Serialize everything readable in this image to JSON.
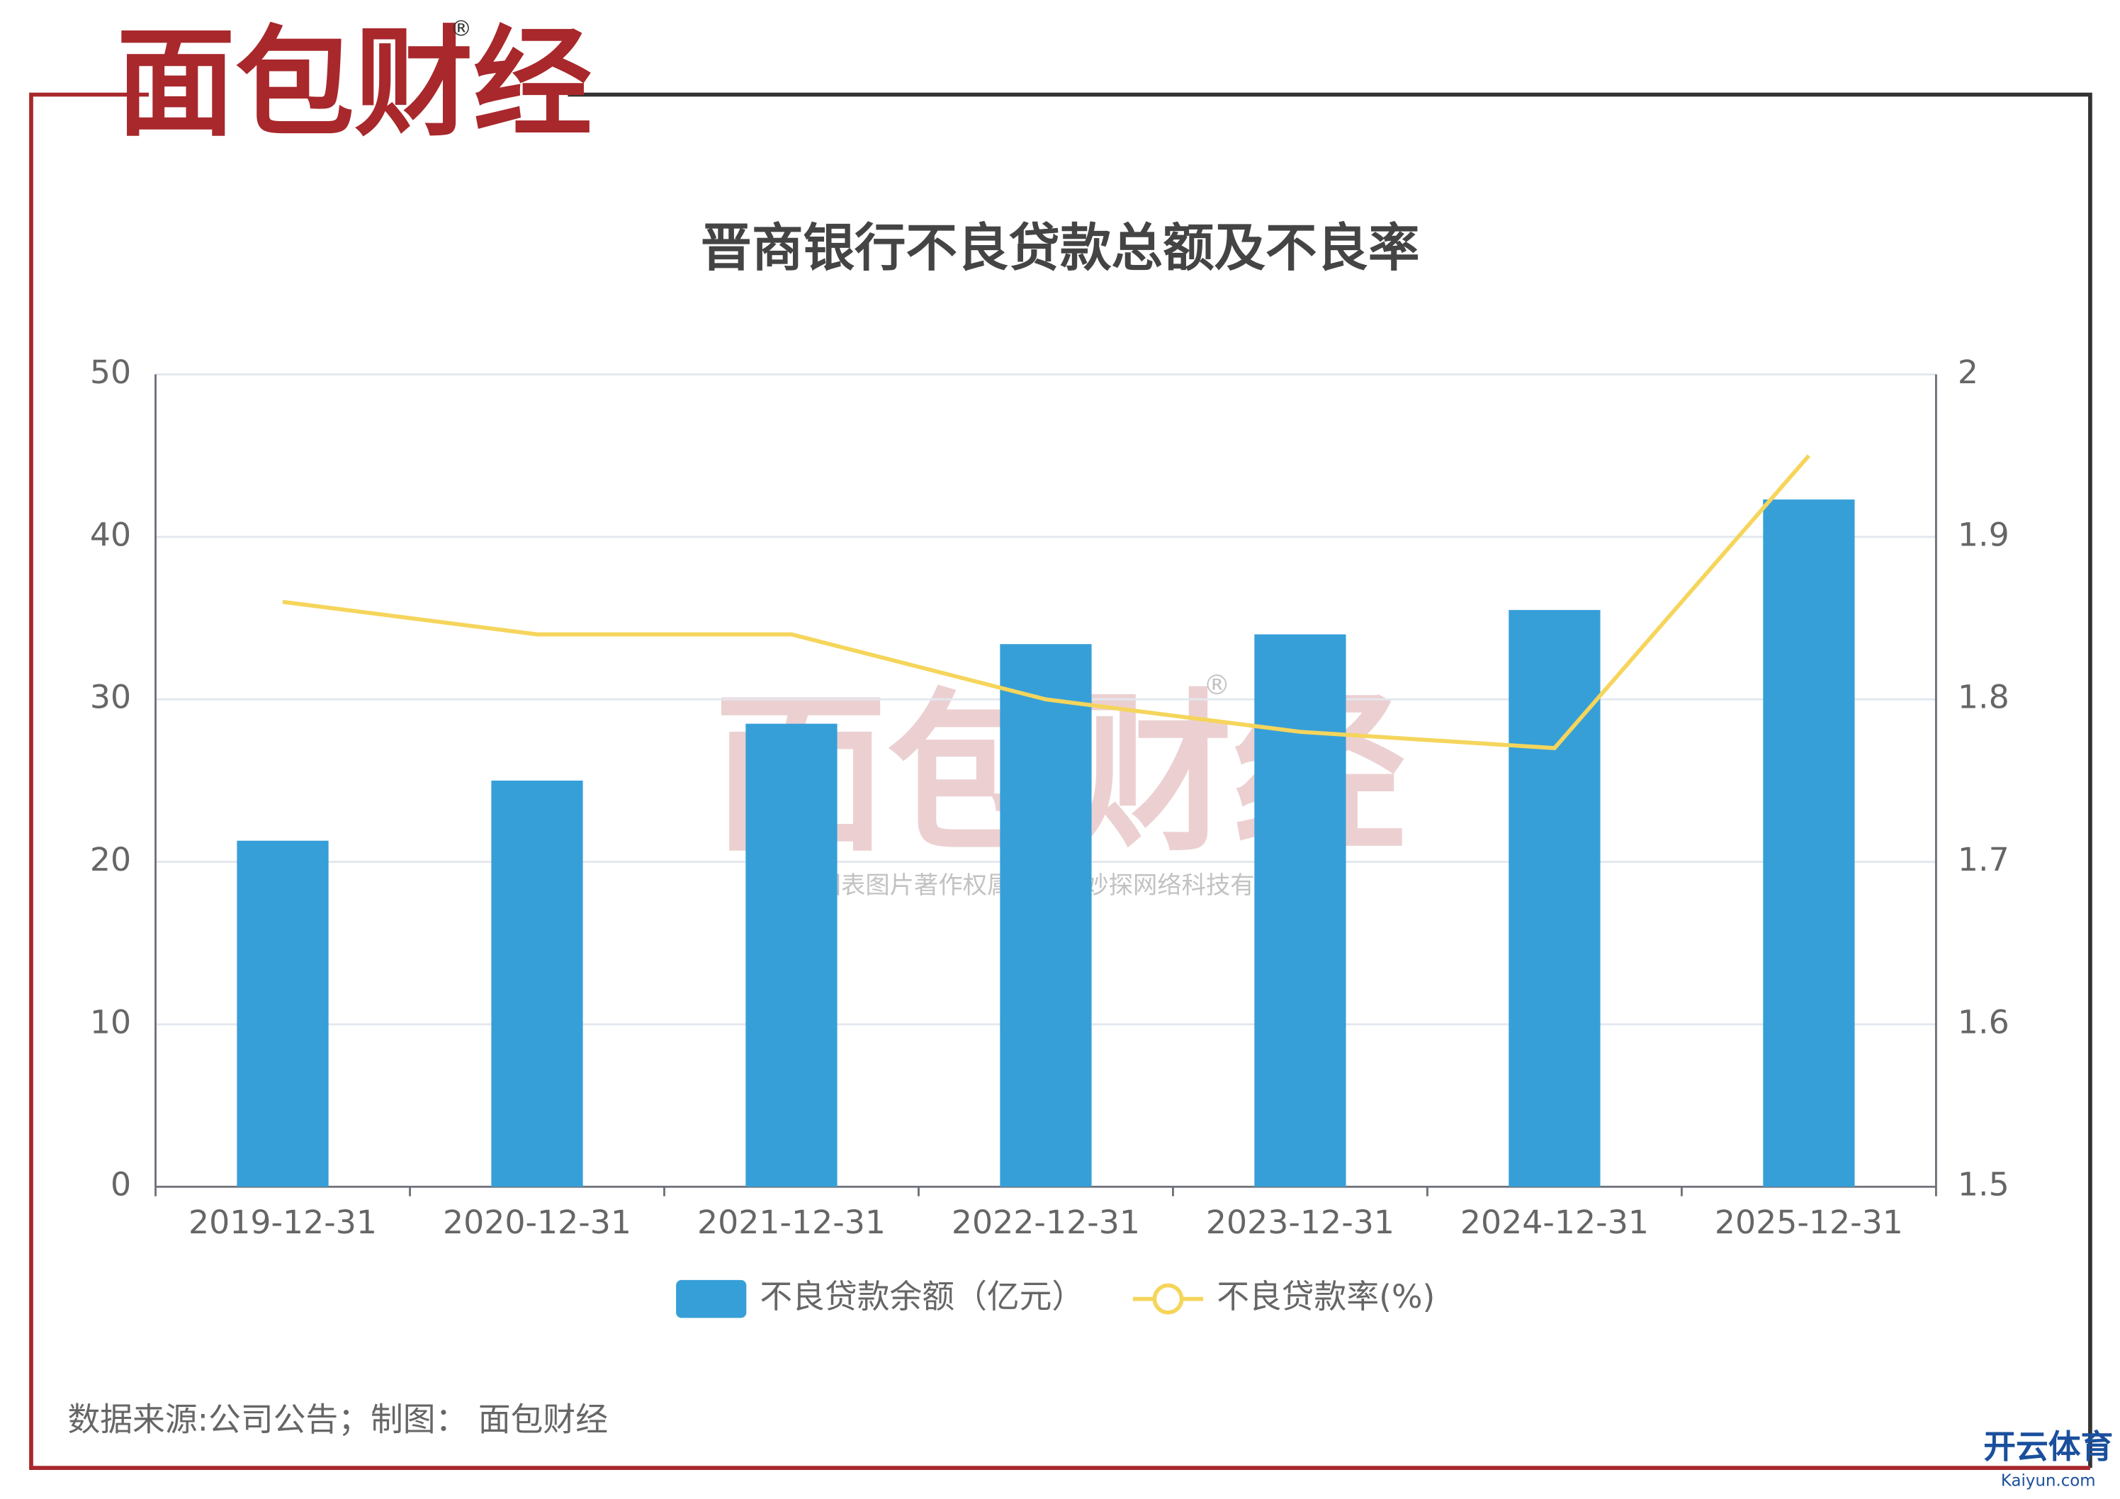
{
  "logo": {
    "text": "面包财经",
    "mark": "®"
  },
  "chart_data": {
    "type": "bar_line",
    "title": "晋商银行不良贷款总额及不良率",
    "categories": [
      "2019-12-31",
      "2020-12-31",
      "2021-12-31",
      "2022-12-31",
      "2023-12-31",
      "2024-12-31",
      "2025-12-31"
    ],
    "series": [
      {
        "name": "不良贷款余额（亿元）",
        "type": "bar",
        "color": "#379fd8",
        "values": [
          21.3,
          25.0,
          28.5,
          33.4,
          34.0,
          35.5,
          42.3
        ]
      },
      {
        "name": "不良贷款率(%)",
        "type": "line",
        "axis": "y2",
        "color": "#f5d55b",
        "values": [
          1.86,
          1.84,
          1.84,
          1.8,
          1.78,
          1.77,
          1.95
        ]
      }
    ],
    "ylim": [
      0,
      50
    ],
    "yticks": [
      0,
      10,
      20,
      30,
      40,
      50
    ],
    "y2lim": [
      1.5,
      2
    ],
    "y2ticks": [
      1.5,
      1.6,
      1.7,
      1.8,
      1.9,
      2
    ],
    "grid": true,
    "legend": "bottom"
  },
  "watermark": {
    "logo": "面包财经",
    "mark": "®",
    "text": "本图表图片著作权属于上海妙探网络科技有限公司"
  },
  "source": "数据来源:公司公告；制图： 面包财经",
  "corner": {
    "name": "开云体育",
    "url": "Kaiyun.com"
  }
}
